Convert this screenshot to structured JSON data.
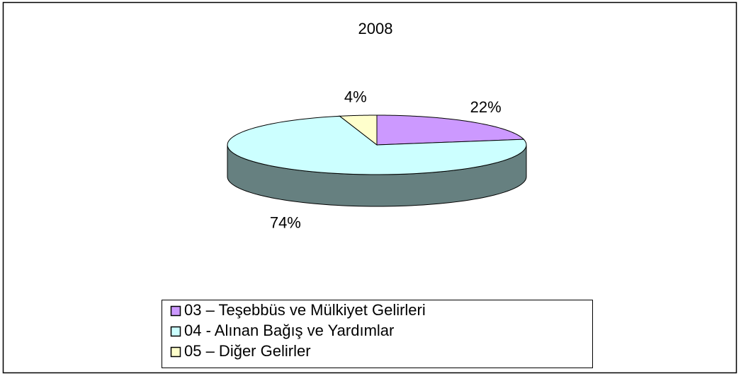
{
  "chart_data": {
    "type": "pie",
    "title": "2008",
    "categories": [
      "03 – Teşebbüs ve Mülkiyet Gelirleri",
      "04 - Alınan Bağış ve Yardımlar",
      "05 – Diğer Gelirler"
    ],
    "values": [
      22,
      74,
      4
    ],
    "value_labels": [
      "22%",
      "74%",
      "4%"
    ],
    "colors": [
      "#cc99ff",
      "#ccffff",
      "#ffffcc"
    ]
  }
}
